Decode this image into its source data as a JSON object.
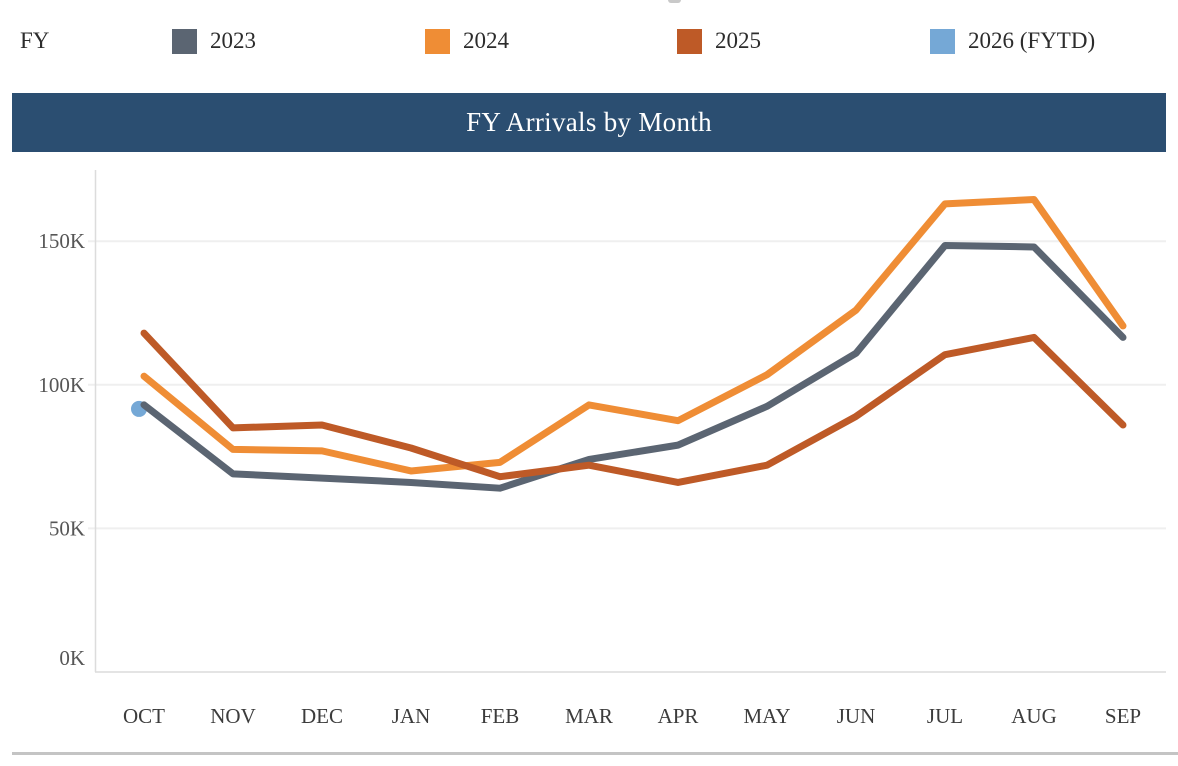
{
  "page": {
    "fy_label": "FY"
  },
  "legend": {
    "items": [
      {
        "label": "2023",
        "color": "#5b6572"
      },
      {
        "label": "2024",
        "color": "#ef8d35"
      },
      {
        "label": "2025",
        "color": "#be5a27"
      },
      {
        "label": "2026 (FYTD)",
        "color": "#75a8d6"
      }
    ]
  },
  "title_bar": {
    "title": "FY Arrivals by Month",
    "background": "#2b4e71"
  },
  "chart_data": {
    "type": "line",
    "title": "FY Arrivals by Month",
    "unit": "thousands of arrivals",
    "categories": [
      "OCT",
      "NOV",
      "DEC",
      "JAN",
      "FEB",
      "MAR",
      "APR",
      "MAY",
      "JUN",
      "JUL",
      "AUG",
      "SEP"
    ],
    "series": [
      {
        "name": "2023",
        "color": "#5b6572",
        "values": [
          93,
          69,
          67.5,
          66,
          64,
          74,
          79,
          92.5,
          111,
          148.5,
          148,
          116.5
        ]
      },
      {
        "name": "2024",
        "color": "#ef8d35",
        "values": [
          103,
          77.5,
          77,
          70,
          73,
          93,
          87.5,
          103.5,
          126,
          163,
          164.5,
          120.5
        ]
      },
      {
        "name": "2025",
        "color": "#be5a27",
        "values": [
          118,
          85,
          86,
          78,
          68,
          72,
          66,
          72,
          89,
          110.5,
          116.5,
          86
        ]
      },
      {
        "name": "2026 (FYTD)",
        "color": "#75a8d6",
        "marker_only": true,
        "values": [
          92.3
        ]
      }
    ],
    "yticks": [
      {
        "label": "0K",
        "value": 0
      },
      {
        "label": "50K",
        "value": 50
      },
      {
        "label": "100K",
        "value": 100
      },
      {
        "label": "150K",
        "value": 150
      }
    ],
    "ylim": [
      0,
      175
    ],
    "grid": true,
    "legend_position": "top"
  }
}
